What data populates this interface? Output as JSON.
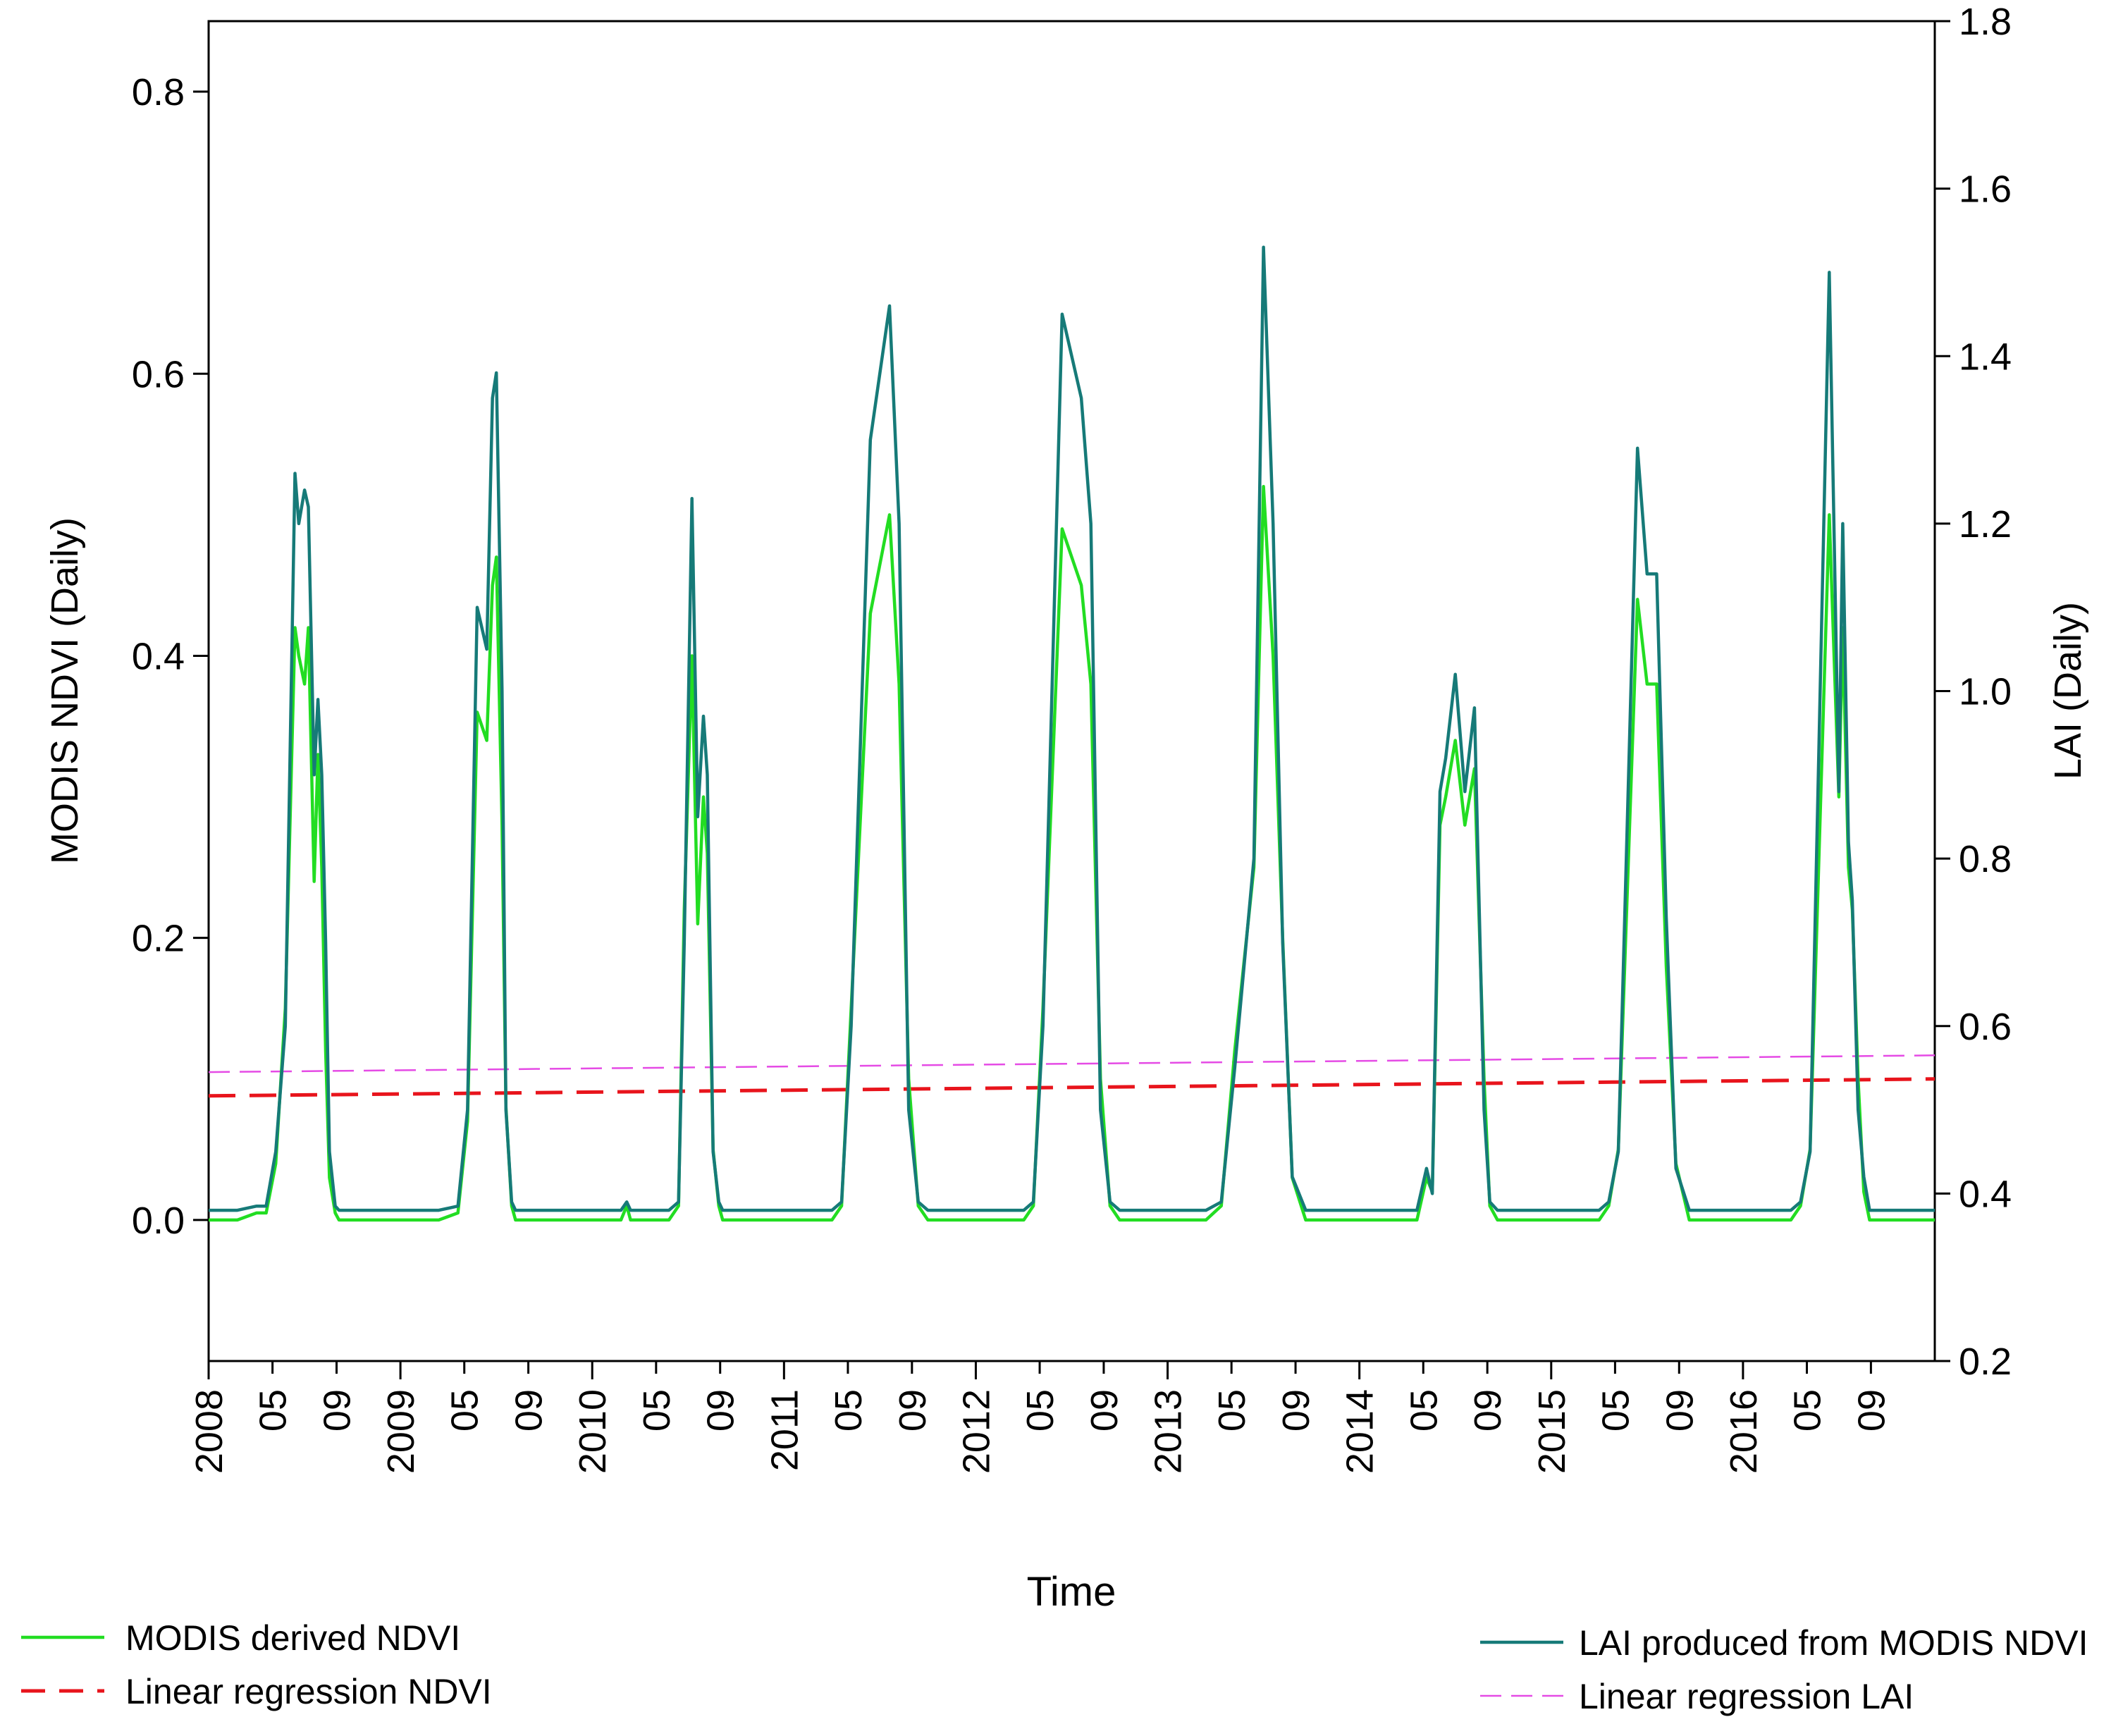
{
  "chart_data": {
    "type": "line",
    "title": "",
    "xlabel": "Time",
    "ylabel_left": "MODIS NDVI (Daily)",
    "ylabel_right": "LAI (Daily)",
    "ylim_left": [
      -0.1,
      0.85
    ],
    "ylim_right": [
      0.2,
      1.8
    ],
    "xlim": [
      2008.0,
      2017.0
    ],
    "left_ticks": [
      {
        "value": 0.0,
        "label": "0.0"
      },
      {
        "value": 0.2,
        "label": "0.2"
      },
      {
        "value": 0.4,
        "label": "0.4"
      },
      {
        "value": 0.6,
        "label": "0.6"
      },
      {
        "value": 0.8,
        "label": "0.8"
      }
    ],
    "right_ticks": [
      {
        "value": 0.2,
        "label": "0.2"
      },
      {
        "value": 0.4,
        "label": "0.4"
      },
      {
        "value": 0.6,
        "label": "0.6"
      },
      {
        "value": 0.8,
        "label": "0.8"
      },
      {
        "value": 1.0,
        "label": "1.0"
      },
      {
        "value": 1.2,
        "label": "1.2"
      },
      {
        "value": 1.4,
        "label": "1.4"
      },
      {
        "value": 1.6,
        "label": "1.6"
      },
      {
        "value": 1.8,
        "label": "1.8"
      }
    ],
    "x_ticks": [
      {
        "value": 2008.0,
        "label": "2008",
        "major": true
      },
      {
        "value": 2008.333,
        "label": "05",
        "major": false
      },
      {
        "value": 2008.667,
        "label": "09",
        "major": false
      },
      {
        "value": 2009.0,
        "label": "2009",
        "major": true
      },
      {
        "value": 2009.333,
        "label": "05",
        "major": false
      },
      {
        "value": 2009.667,
        "label": "09",
        "major": false
      },
      {
        "value": 2010.0,
        "label": "2010",
        "major": true
      },
      {
        "value": 2010.333,
        "label": "05",
        "major": false
      },
      {
        "value": 2010.667,
        "label": "09",
        "major": false
      },
      {
        "value": 2011.0,
        "label": "2011",
        "major": true
      },
      {
        "value": 2011.333,
        "label": "05",
        "major": false
      },
      {
        "value": 2011.667,
        "label": "09",
        "major": false
      },
      {
        "value": 2012.0,
        "label": "2012",
        "major": true
      },
      {
        "value": 2012.333,
        "label": "05",
        "major": false
      },
      {
        "value": 2012.667,
        "label": "09",
        "major": false
      },
      {
        "value": 2013.0,
        "label": "2013",
        "major": true
      },
      {
        "value": 2013.333,
        "label": "05",
        "major": false
      },
      {
        "value": 2013.667,
        "label": "09",
        "major": false
      },
      {
        "value": 2014.0,
        "label": "2014",
        "major": true
      },
      {
        "value": 2014.333,
        "label": "05",
        "major": false
      },
      {
        "value": 2014.667,
        "label": "09",
        "major": false
      },
      {
        "value": 2015.0,
        "label": "2015",
        "major": true
      },
      {
        "value": 2015.333,
        "label": "05",
        "major": false
      },
      {
        "value": 2015.667,
        "label": "09",
        "major": false
      },
      {
        "value": 2016.0,
        "label": "2016",
        "major": true
      },
      {
        "value": 2016.333,
        "label": "05",
        "major": false
      },
      {
        "value": 2016.667,
        "label": "09",
        "major": false
      }
    ],
    "series": [
      {
        "name": "MODIS derived NDVI",
        "axis": "left",
        "color": "#22dd22",
        "style": "solid",
        "x": [
          2008.0,
          2008.15,
          2008.25,
          2008.3,
          2008.35,
          2008.4,
          2008.45,
          2008.47,
          2008.5,
          2008.52,
          2008.55,
          2008.57,
          2008.59,
          2008.61,
          2008.63,
          2008.66,
          2008.68,
          2008.72,
          2008.75,
          2008.8,
          2009.0,
          2009.2,
          2009.3,
          2009.35,
          2009.4,
          2009.45,
          2009.48,
          2009.5,
          2009.53,
          2009.55,
          2009.58,
          2009.6,
          2009.63,
          2009.67,
          2009.72,
          2009.75,
          2009.8,
          2010.0,
          2010.15,
          2010.18,
          2010.2,
          2010.4,
          2010.45,
          2010.48,
          2010.52,
          2010.55,
          2010.58,
          2010.6,
          2010.63,
          2010.66,
          2010.68,
          2010.72,
          2010.75,
          2010.8,
          2011.0,
          2011.25,
          2011.3,
          2011.35,
          2011.45,
          2011.55,
          2011.6,
          2011.65,
          2011.7,
          2011.75,
          2011.8,
          2012.0,
          2012.25,
          2012.3,
          2012.35,
          2012.45,
          2012.55,
          2012.6,
          2012.65,
          2012.7,
          2012.75,
          2012.8,
          2013.0,
          2013.2,
          2013.28,
          2013.35,
          2013.45,
          2013.5,
          2013.55,
          2013.6,
          2013.65,
          2013.72,
          2013.75,
          2013.8,
          2014.0,
          2014.3,
          2014.35,
          2014.38,
          2014.42,
          2014.45,
          2014.5,
          2014.55,
          2014.6,
          2014.65,
          2014.68,
          2014.72,
          2014.75,
          2014.8,
          2015.0,
          2015.25,
          2015.3,
          2015.35,
          2015.45,
          2015.5,
          2015.55,
          2015.6,
          2015.65,
          2015.72,
          2015.75,
          2015.8,
          2016.0,
          2016.25,
          2016.3,
          2016.35,
          2016.45,
          2016.5,
          2016.52,
          2016.55,
          2016.57,
          2016.6,
          2016.63,
          2016.66,
          2016.68,
          2016.72,
          2016.75,
          2016.8,
          2017.0
        ],
        "values": [
          0.0,
          0.0,
          0.005,
          0.005,
          0.04,
          0.15,
          0.42,
          0.4,
          0.38,
          0.42,
          0.24,
          0.33,
          0.25,
          0.12,
          0.03,
          0.005,
          0.0,
          0.0,
          0.0,
          0.0,
          0.0,
          0.0,
          0.005,
          0.07,
          0.36,
          0.34,
          0.45,
          0.47,
          0.28,
          0.08,
          0.01,
          0.0,
          0.0,
          0.0,
          0.0,
          0.0,
          0.0,
          0.0,
          0.0,
          0.01,
          0.0,
          0.0,
          0.01,
          0.22,
          0.4,
          0.21,
          0.3,
          0.26,
          0.05,
          0.01,
          0.0,
          0.0,
          0.0,
          0.0,
          0.0,
          0.0,
          0.01,
          0.15,
          0.43,
          0.5,
          0.38,
          0.1,
          0.01,
          0.0,
          0.0,
          0.0,
          0.0,
          0.01,
          0.15,
          0.49,
          0.45,
          0.38,
          0.1,
          0.01,
          0.0,
          0.0,
          0.0,
          0.0,
          0.01,
          0.12,
          0.25,
          0.52,
          0.4,
          0.2,
          0.03,
          0.0,
          0.0,
          0.0,
          0.0,
          0.0,
          0.03,
          0.02,
          0.28,
          0.3,
          0.34,
          0.28,
          0.32,
          0.1,
          0.01,
          0.0,
          0.0,
          0.0,
          0.0,
          0.0,
          0.01,
          0.05,
          0.44,
          0.38,
          0.38,
          0.18,
          0.04,
          0.0,
          0.0,
          0.0,
          0.0,
          0.0,
          0.01,
          0.05,
          0.5,
          0.3,
          0.42,
          0.25,
          0.22,
          0.1,
          0.02,
          0.0,
          0.0,
          0.0,
          0.0,
          0.0,
          0.0
        ]
      },
      {
        "name": "LAI produced from MODIS NDVI",
        "axis": "right",
        "color": "#167a78",
        "style": "solid",
        "x": [
          2008.0,
          2008.15,
          2008.25,
          2008.3,
          2008.35,
          2008.4,
          2008.45,
          2008.47,
          2008.5,
          2008.52,
          2008.55,
          2008.57,
          2008.59,
          2008.61,
          2008.63,
          2008.66,
          2008.68,
          2008.72,
          2008.75,
          2008.8,
          2009.0,
          2009.2,
          2009.3,
          2009.35,
          2009.4,
          2009.45,
          2009.48,
          2009.5,
          2009.53,
          2009.55,
          2009.58,
          2009.6,
          2009.63,
          2009.67,
          2009.72,
          2009.75,
          2009.8,
          2010.0,
          2010.15,
          2010.18,
          2010.2,
          2010.4,
          2010.45,
          2010.48,
          2010.52,
          2010.55,
          2010.58,
          2010.6,
          2010.63,
          2010.66,
          2010.68,
          2010.72,
          2010.75,
          2010.8,
          2011.0,
          2011.25,
          2011.3,
          2011.35,
          2011.45,
          2011.55,
          2011.6,
          2011.65,
          2011.7,
          2011.75,
          2011.8,
          2012.0,
          2012.25,
          2012.3,
          2012.35,
          2012.45,
          2012.55,
          2012.6,
          2012.65,
          2012.7,
          2012.75,
          2012.8,
          2013.0,
          2013.2,
          2013.28,
          2013.35,
          2013.45,
          2013.5,
          2013.55,
          2013.6,
          2013.65,
          2013.72,
          2013.75,
          2013.8,
          2014.0,
          2014.3,
          2014.35,
          2014.38,
          2014.42,
          2014.45,
          2014.5,
          2014.55,
          2014.6,
          2014.65,
          2014.68,
          2014.72,
          2014.75,
          2014.8,
          2015.0,
          2015.25,
          2015.3,
          2015.35,
          2015.45,
          2015.5,
          2015.55,
          2015.6,
          2015.65,
          2015.72,
          2015.75,
          2015.8,
          2016.0,
          2016.25,
          2016.3,
          2016.35,
          2016.45,
          2016.5,
          2016.52,
          2016.55,
          2016.57,
          2016.6,
          2016.63,
          2016.66,
          2016.68,
          2016.72,
          2016.75,
          2016.8,
          2017.0
        ],
        "values": [
          0.38,
          0.38,
          0.385,
          0.385,
          0.45,
          0.6,
          1.26,
          1.2,
          1.24,
          1.22,
          0.9,
          0.99,
          0.9,
          0.7,
          0.45,
          0.385,
          0.38,
          0.38,
          0.38,
          0.38,
          0.38,
          0.38,
          0.385,
          0.5,
          1.1,
          1.05,
          1.35,
          1.38,
          1.0,
          0.5,
          0.39,
          0.38,
          0.38,
          0.38,
          0.38,
          0.38,
          0.38,
          0.38,
          0.38,
          0.39,
          0.38,
          0.38,
          0.39,
          0.7,
          1.23,
          0.85,
          0.97,
          0.9,
          0.45,
          0.39,
          0.38,
          0.38,
          0.38,
          0.38,
          0.38,
          0.38,
          0.39,
          0.6,
          1.3,
          1.46,
          1.2,
          0.5,
          0.39,
          0.38,
          0.38,
          0.38,
          0.38,
          0.39,
          0.6,
          1.45,
          1.35,
          1.2,
          0.5,
          0.39,
          0.38,
          0.38,
          0.38,
          0.38,
          0.39,
          0.55,
          0.8,
          1.53,
          1.2,
          0.7,
          0.42,
          0.38,
          0.38,
          0.38,
          0.38,
          0.38,
          0.43,
          0.4,
          0.88,
          0.92,
          1.02,
          0.88,
          0.98,
          0.5,
          0.39,
          0.38,
          0.38,
          0.38,
          0.38,
          0.38,
          0.39,
          0.45,
          1.29,
          1.14,
          1.14,
          0.73,
          0.43,
          0.38,
          0.38,
          0.38,
          0.38,
          0.38,
          0.39,
          0.45,
          1.5,
          0.88,
          1.2,
          0.82,
          0.75,
          0.5,
          0.42,
          0.38,
          0.38,
          0.38,
          0.38,
          0.38,
          0.38
        ]
      },
      {
        "name": "Linear regression NDVI",
        "axis": "left",
        "color": "#e8141c",
        "style": "dashed",
        "x": [
          2008.0,
          2017.0
        ],
        "values": [
          0.088,
          0.1
        ]
      },
      {
        "name": "Linear regression LAI",
        "axis": "right",
        "color": "#e54be5",
        "style": "dashed-thin",
        "x": [
          2008.0,
          2017.0
        ],
        "values": [
          0.545,
          0.565
        ]
      }
    ],
    "legend_left": [
      {
        "label": "MODIS derived NDVI",
        "color": "#22dd22",
        "style": "solid"
      },
      {
        "label": "Linear regression NDVI",
        "color": "#e8141c",
        "style": "dashed"
      }
    ],
    "legend_right": [
      {
        "label": "LAI produced from MODIS NDVI",
        "color": "#167a78",
        "style": "solid"
      },
      {
        "label": "Linear regression LAI",
        "color": "#e54be5",
        "style": "dashed-thin"
      }
    ]
  }
}
